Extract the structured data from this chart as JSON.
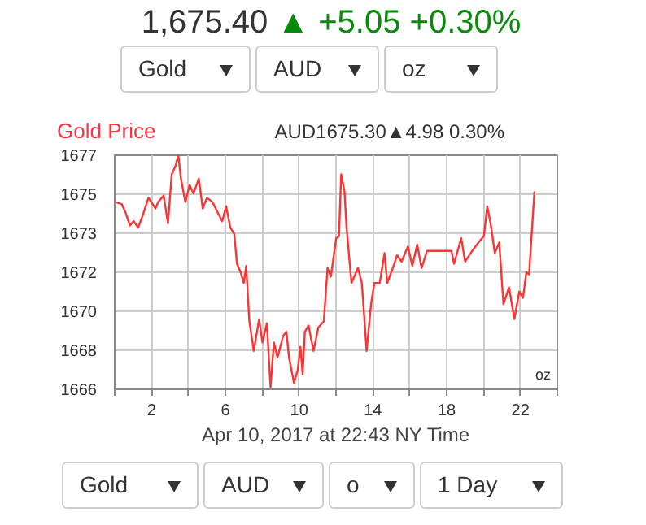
{
  "chart_data": {
    "type": "line",
    "title": "Gold Price",
    "subtitle": "AUD1675.30▲4.98 0.30%",
    "xlabel": "Apr 10, 2017 at 22:43 NY Time",
    "annotations": [
      "1,675.40 ▲ +5.05 +0.30%",
      "Gold",
      "AUD",
      "oz",
      "oz",
      "Gold",
      "AUD",
      "o",
      "1 Day"
    ],
    "x": [
      0,
      0.38,
      0.59,
      0.82,
      1.03,
      1.27,
      1.53,
      1.83,
      2.06,
      2.21,
      2.36,
      2.65,
      2.89,
      3.09,
      3.3,
      3.45,
      3.59,
      3.83,
      4.06,
      4.27,
      4.56,
      4.77,
      5.0,
      5.3,
      5.59,
      5.83,
      6.04,
      6.27,
      6.48,
      6.63,
      6.83,
      7.0,
      7.13,
      7.3,
      7.54,
      7.83,
      8.01,
      8.25,
      8.45,
      8.63,
      8.83,
      9.13,
      9.31,
      9.45,
      9.72,
      9.92,
      10.07,
      10.19,
      10.31,
      10.51,
      10.78,
      11.04,
      11.34,
      11.54,
      11.72,
      12.01,
      12.16,
      12.28,
      12.46,
      12.57,
      12.84,
      13.19,
      13.4,
      13.66,
      13.9,
      14.08,
      14.37,
      14.63,
      14.78,
      15.08,
      15.31,
      15.55,
      15.9,
      16.14,
      16.4,
      16.64,
      16.93,
      18.26,
      18.4,
      18.79,
      19.0,
      19.38,
      19.73,
      20.02,
      20.2,
      20.38,
      20.61,
      20.85,
      21.08,
      21.38,
      21.67,
      21.94,
      22.14,
      22.32,
      22.47,
      22.76
    ],
    "series": [
      {
        "color": "#ff3333",
        "values": [
          1674.8,
          1674.7,
          1674.3,
          1673.7,
          1673.9,
          1673.6,
          1674.2,
          1675.0,
          1674.7,
          1674.5,
          1674.8,
          1675.1,
          1673.8,
          1676.1,
          1676.5,
          1677.0,
          1675.9,
          1674.8,
          1675.6,
          1675.2,
          1675.9,
          1674.5,
          1675.0,
          1674.8,
          1674.3,
          1673.9,
          1674.6,
          1673.6,
          1673.3,
          1671.9,
          1671.5,
          1671.0,
          1671.8,
          1669.2,
          1667.8,
          1669.3,
          1668.2,
          1669.1,
          1666.1,
          1668.2,
          1667.5,
          1668.5,
          1668.7,
          1667.5,
          1666.3,
          1666.9,
          1668.0,
          1666.7,
          1668.7,
          1669.0,
          1667.8,
          1668.9,
          1669.2,
          1671.7,
          1671.3,
          1673.1,
          1673.2,
          1676.1,
          1675.3,
          1673.6,
          1671.0,
          1671.7,
          1671.0,
          1667.8,
          1670.0,
          1671.0,
          1671.0,
          1672.4,
          1671.0,
          1671.7,
          1672.3,
          1672.0,
          1672.7,
          1671.8,
          1672.8,
          1671.7,
          1672.5,
          1672.5,
          1671.9,
          1673.1,
          1672.0,
          1672.5,
          1672.9,
          1673.2,
          1674.6,
          1673.8,
          1672.4,
          1672.9,
          1670.0,
          1670.8,
          1669.3,
          1670.6,
          1670.3,
          1671.5,
          1671.4,
          1675.3
        ]
      }
    ],
    "xlim": [
      0,
      24
    ],
    "xticks": [
      {
        "value": 0,
        "label": null
      },
      2,
      {
        "value": 4,
        "label": null
      },
      6,
      {
        "value": 8,
        "label": null
      },
      10,
      {
        "value": 12,
        "label": null
      },
      14,
      {
        "value": 16,
        "label": null
      },
      18,
      {
        "value": 20,
        "label": null
      },
      22,
      {
        "value": 24,
        "label": null
      }
    ],
    "ylim": [
      1666,
      1677
    ],
    "yticks": [
      1666,
      {
        "value": 1667.833,
        "label": "1668"
      },
      {
        "value": 1669.667,
        "label": "1670"
      },
      {
        "value": 1671.5,
        "label": "1672"
      },
      {
        "value": 1673.333,
        "label": "1673"
      },
      {
        "value": 1675.167,
        "label": "1675"
      },
      1677
    ],
    "grid": true
  }
}
